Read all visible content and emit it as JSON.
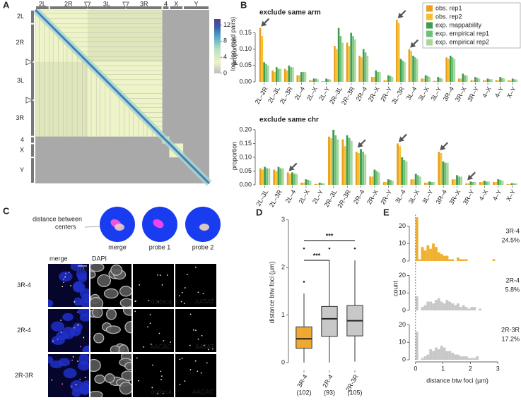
{
  "panel_labels": [
    "A",
    "B",
    "C",
    "D",
    "E"
  ],
  "chart_data": [
    {
      "type": "heatmap",
      "top_labels": [
        "2L",
        "2R",
        "3L",
        "3R",
        "4",
        "X",
        "Y"
      ],
      "left_labels": [
        "2L",
        "2R",
        "3L",
        "3R",
        "4",
        "X",
        "Y"
      ],
      "colorbar": {
        "label": "log₂(no. read pairs)",
        "lim": [
          0,
          13.5
        ],
        "ticks": [
          0,
          4,
          8,
          12
        ]
      }
    },
    {
      "type": "bar",
      "title": "exclude same arm",
      "ylabel": "proportion",
      "legend": "top-right",
      "categories": [
        "2L–2R",
        "2L–3L",
        "2L–3R",
        "2L–4",
        "2L–X",
        "2L–Y",
        "2R–3L",
        "2R–3R",
        "2R–4",
        "2R–X",
        "2R–Y",
        "3L–3R",
        "3L–4",
        "3L–X",
        "3L–Y",
        "3R–4",
        "3R–X",
        "3R–Y",
        "4–X",
        "4–Y",
        "X–Y"
      ],
      "arrows": [
        0,
        11,
        12
      ],
      "ylim": [
        0,
        0.19
      ],
      "yticks": [
        {
          "value": 0,
          "label": "0.00"
        },
        {
          "value": 0.05,
          "label": "0.05"
        },
        {
          "value": 0.1,
          "label": "0.10"
        },
        {
          "value": 0.15,
          "label": "0.15"
        }
      ],
      "series": [
        {
          "name": "obs. rep1",
          "color": "#e8a01e",
          "values": [
            0.165,
            0.035,
            0.04,
            0.02,
            0.005,
            0.002,
            0.11,
            0.12,
            0.08,
            0.015,
            0.005,
            0.19,
            0.1,
            0.01,
            0.003,
            0.075,
            0.01,
            0.005,
            0.005,
            0.005,
            0.005
          ]
        },
        {
          "name": "obs. rep2",
          "color": "#f7c02f",
          "values": [
            0.14,
            0.03,
            0.035,
            0.02,
            0.005,
            0.002,
            0.1,
            0.11,
            0.075,
            0.015,
            0.005,
            0.18,
            0.095,
            0.01,
            0.003,
            0.07,
            0.01,
            0.005,
            0.005,
            0.005,
            0.004
          ]
        },
        {
          "name": "exp. mappability",
          "color": "#3e9c4e",
          "values": [
            0.06,
            0.045,
            0.05,
            0.03,
            0.01,
            0.01,
            0.165,
            0.15,
            0.1,
            0.035,
            0.02,
            0.07,
            0.08,
            0.02,
            0.015,
            0.08,
            0.025,
            0.015,
            0.01,
            0.015,
            0.01
          ]
        },
        {
          "name": "exp. empirical rep1",
          "color": "#6fc07a",
          "values": [
            0.055,
            0.04,
            0.045,
            0.03,
            0.01,
            0.008,
            0.14,
            0.14,
            0.09,
            0.03,
            0.018,
            0.065,
            0.075,
            0.018,
            0.012,
            0.075,
            0.02,
            0.012,
            0.008,
            0.012,
            0.008
          ]
        },
        {
          "name": "exp. empirical rep2",
          "color": "#a9d99a",
          "values": [
            0.05,
            0.04,
            0.045,
            0.03,
            0.008,
            0.007,
            0.12,
            0.13,
            0.08,
            0.03,
            0.015,
            0.06,
            0.07,
            0.015,
            0.01,
            0.07,
            0.02,
            0.01,
            0.008,
            0.01,
            0.007
          ]
        }
      ]
    },
    {
      "type": "bar",
      "title": "exclude same chr",
      "ylabel": "proportion",
      "categories": [
        "2L–3L",
        "2L–3R",
        "2L–4",
        "2L–X",
        "2L–Y",
        "2R–3L",
        "2R–3R",
        "2R–4",
        "2R–X",
        "2R–Y",
        "3L–4",
        "3L–X",
        "3L–Y",
        "3R–4",
        "3R–X",
        "3R–Y",
        "4–X",
        "4–Y",
        "X–Y"
      ],
      "arrows": [
        2,
        7,
        10,
        13,
        15
      ],
      "ylim": [
        0,
        0.21
      ],
      "yticks": [
        {
          "value": 0,
          "label": "0.00"
        },
        {
          "value": 0.05,
          "label": "0.05"
        },
        {
          "value": 0.1,
          "label": "0.10"
        },
        {
          "value": 0.15,
          "label": "0.15"
        },
        {
          "value": 0.2,
          "label": "0.20"
        }
      ],
      "series": [
        {
          "color": "#e8a01e",
          "values": [
            0.06,
            0.055,
            0.045,
            0.008,
            0.003,
            0.175,
            0.165,
            0.12,
            0.03,
            0.01,
            0.15,
            0.02,
            0.008,
            0.12,
            0.02,
            0.005,
            0.01,
            0.01,
            0.003
          ]
        },
        {
          "color": "#f7c02f",
          "values": [
            0.055,
            0.05,
            0.04,
            0.008,
            0.003,
            0.17,
            0.14,
            0.115,
            0.03,
            0.01,
            0.14,
            0.02,
            0.008,
            0.115,
            0.02,
            0.005,
            0.01,
            0.01,
            0.003
          ]
        },
        {
          "color": "#3e9c4e",
          "values": [
            0.065,
            0.065,
            0.045,
            0.02,
            0.008,
            0.2,
            0.18,
            0.13,
            0.055,
            0.02,
            0.1,
            0.04,
            0.012,
            0.085,
            0.035,
            0.012,
            0.015,
            0.02,
            0.006
          ]
        },
        {
          "color": "#6fc07a",
          "values": [
            0.06,
            0.06,
            0.04,
            0.018,
            0.006,
            0.18,
            0.17,
            0.12,
            0.05,
            0.018,
            0.09,
            0.035,
            0.01,
            0.08,
            0.03,
            0.01,
            0.012,
            0.018,
            0.005
          ]
        },
        {
          "color": "#a9d99a",
          "values": [
            0.06,
            0.06,
            0.04,
            0.015,
            0.005,
            0.165,
            0.16,
            0.11,
            0.045,
            0.015,
            0.085,
            0.03,
            0.01,
            0.08,
            0.03,
            0.01,
            0.012,
            0.015,
            0.005
          ]
        }
      ]
    },
    {
      "type": "box",
      "ylabel": "distance btw foci (µm)",
      "categories": [
        "3R-4",
        "2R-4",
        "2R-3R"
      ],
      "n_labels": [
        "(102)",
        "(93)",
        "(105)"
      ],
      "colors": [
        "#f0a830",
        "#c8c8c8",
        "#c8c8c8"
      ],
      "ylim": [
        -0.15,
        3.1
      ],
      "yticks": [
        0,
        1,
        2,
        3
      ],
      "boxes": [
        {
          "whisker_low": 0,
          "q1": 0.3,
          "median": 0.5,
          "q3": 0.75,
          "whisker_high": 1.45,
          "outliers": [
            1.7,
            2.4
          ]
        },
        {
          "whisker_low": 0,
          "q1": 0.55,
          "median": 0.92,
          "q3": 1.18,
          "whisker_high": 2.15,
          "outliers": [
            2.4
          ]
        },
        {
          "whisker_low": 0.02,
          "q1": 0.56,
          "median": 0.88,
          "q3": 1.2,
          "whisker_high": 2.15,
          "outliers": [
            2.4
          ]
        }
      ],
      "significance": [
        {
          "from": 0,
          "to": 1,
          "label": "***"
        },
        {
          "from": 0,
          "to": 2,
          "label": "***"
        }
      ]
    },
    {
      "type": "histogram",
      "xlabel": "distance btw foci (µm)",
      "ylabel": "count",
      "xlim": [
        -0.15,
        3.2
      ],
      "xticks": [
        0,
        1,
        2,
        3
      ],
      "ylim": [
        0,
        25
      ],
      "yticks": [
        0,
        10,
        20
      ],
      "bins": [
        0,
        0.1,
        0.2,
        0.3,
        0.4,
        0.5,
        0.6,
        0.7,
        0.8,
        0.9,
        1.0,
        1.1,
        1.2,
        1.3,
        1.4,
        1.5,
        1.6,
        1.7,
        1.8,
        1.9,
        2.0,
        2.1,
        2.2,
        2.3,
        2.4,
        2.5,
        2.6,
        2.7,
        2.8,
        2.9,
        3.0,
        3.1,
        3.2
      ],
      "series": [
        {
          "name": "3R-4",
          "color": "#f0b030",
          "annotation_value": 24.5,
          "annotation_label": "24.5%",
          "values": [
            25,
            1,
            8,
            6,
            9,
            7,
            10,
            8,
            5,
            4,
            3,
            3,
            1,
            1,
            0,
            2,
            1,
            1,
            1,
            0,
            0,
            0,
            0,
            0,
            0,
            0,
            0,
            0,
            1,
            0,
            0,
            0
          ]
        },
        {
          "name": "2R-4",
          "color": "#c8c8c8",
          "annotation_value": 5.8,
          "annotation_label": "5.8%",
          "values": [
            8,
            0,
            2,
            3,
            5,
            5,
            4,
            6,
            7,
            5,
            4,
            6,
            5,
            4,
            3,
            4,
            2,
            3,
            2,
            1,
            2,
            2,
            0,
            1,
            0,
            0,
            0,
            0,
            0,
            0,
            0,
            0
          ]
        },
        {
          "name": "2R-3R",
          "color": "#c8c8c8",
          "annotation_value": 17.2,
          "annotation_label": "17.2%",
          "values": [
            16,
            0,
            1,
            2,
            3,
            6,
            5,
            7,
            6,
            8,
            7,
            5,
            5,
            4,
            3,
            3,
            2,
            2,
            2,
            1,
            1,
            1,
            2,
            0,
            0,
            0,
            0,
            0,
            0,
            0,
            0,
            0
          ]
        }
      ]
    }
  ],
  "panel_c": {
    "callout": [
      "distance between",
      "centers"
    ],
    "schematic_labels": [
      "merge",
      "probe 1",
      "probe 2"
    ],
    "column_labels": [
      "merge",
      "DAPI"
    ],
    "scale_bar": "5 µm",
    "rows": [
      {
        "label": "3R-4",
        "probe1": "dodeca",
        "probe2": "AATAT"
      },
      {
        "label": "2R-4",
        "probe1": "AACAC",
        "probe2": "AATAT"
      },
      {
        "label": "2R-3R",
        "probe1": "dodeca",
        "probe2": "AACAC"
      }
    ]
  }
}
